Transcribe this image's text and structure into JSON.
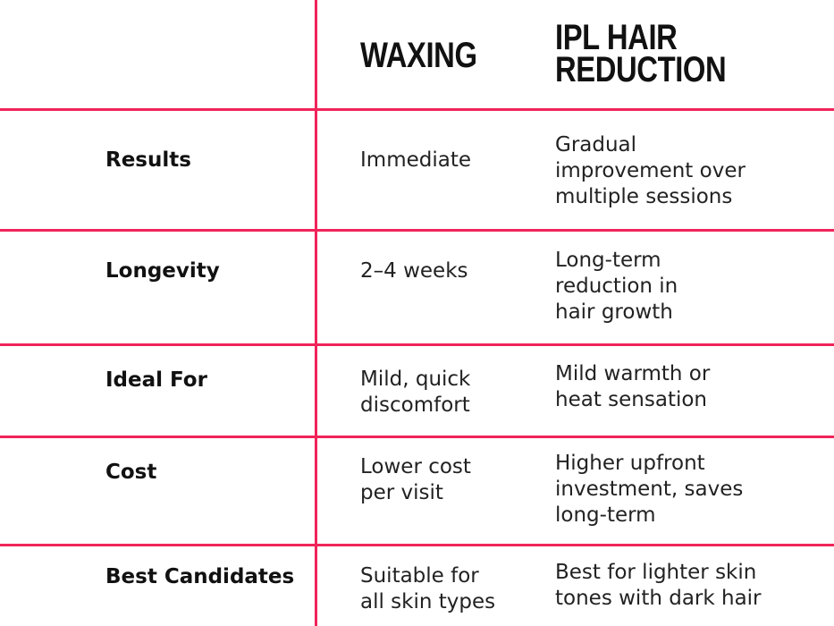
{
  "colors": {
    "divider": "#f0245a"
  },
  "headers": [
    "",
    "WAXING",
    "IPL HAIR\nREDUCTION"
  ],
  "rows": [
    {
      "label": "Results",
      "waxing": "Immediate",
      "ipl": "Gradual\nimprovement over\nmultiple sessions"
    },
    {
      "label": "Longevity",
      "waxing": "2–4 weeks",
      "ipl": "Long-term\nreduction in\nhair growth"
    },
    {
      "label": "Ideal For",
      "waxing": "Mild, quick\ndiscomfort",
      "ipl": "Mild warmth or\nheat sensation"
    },
    {
      "label": "Cost",
      "waxing": "Lower cost\nper visit",
      "ipl": "Higher upfront\ninvestment, saves\nlong-term"
    },
    {
      "label": "Best Candidates",
      "waxing": "Suitable for\nall skin types",
      "ipl": "Best for lighter skin\ntones with dark hair"
    }
  ]
}
